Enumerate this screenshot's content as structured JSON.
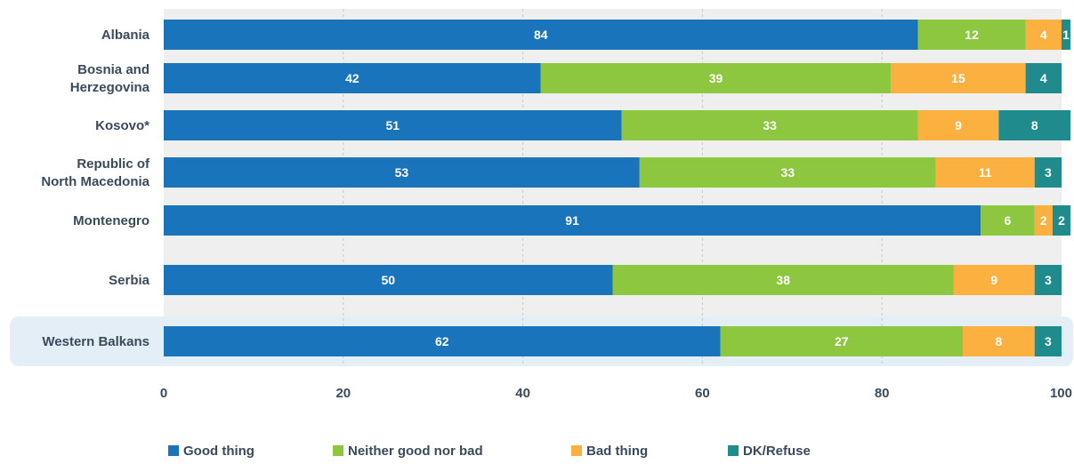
{
  "chart_data": {
    "type": "bar",
    "orientation": "horizontal",
    "stacked": true,
    "categories": [
      [
        "Albania"
      ],
      [
        "Bosnia and",
        "Herzegovina"
      ],
      [
        "Kosovo*"
      ],
      [
        "Republic of",
        "North Macedonia"
      ],
      [
        "Montenegro"
      ],
      [
        "Serbia"
      ],
      [
        "Western Balkans"
      ]
    ],
    "highlighted_category": "Western Balkans",
    "series": [
      {
        "name": "Good thing",
        "color": "#1a74bb",
        "values": [
          84,
          42,
          51,
          53,
          91,
          50,
          62
        ]
      },
      {
        "name": "Neither good nor bad",
        "color": "#8dc63f",
        "values": [
          12,
          39,
          33,
          33,
          6,
          38,
          27
        ]
      },
      {
        "name": "Bad thing",
        "color": "#fbb040",
        "values": [
          4,
          15,
          9,
          11,
          2,
          9,
          8
        ]
      },
      {
        "name": "DK/Refuse",
        "color": "#1f8b8c",
        "values": [
          1,
          4,
          8,
          3,
          2,
          3,
          3
        ]
      }
    ],
    "xlim": [
      0,
      100
    ],
    "xticks": [
      "0",
      "20",
      "40",
      "60",
      "80",
      "100"
    ],
    "grid": true,
    "legend_position": "bottom",
    "title": "",
    "xlabel": "",
    "ylabel": ""
  }
}
